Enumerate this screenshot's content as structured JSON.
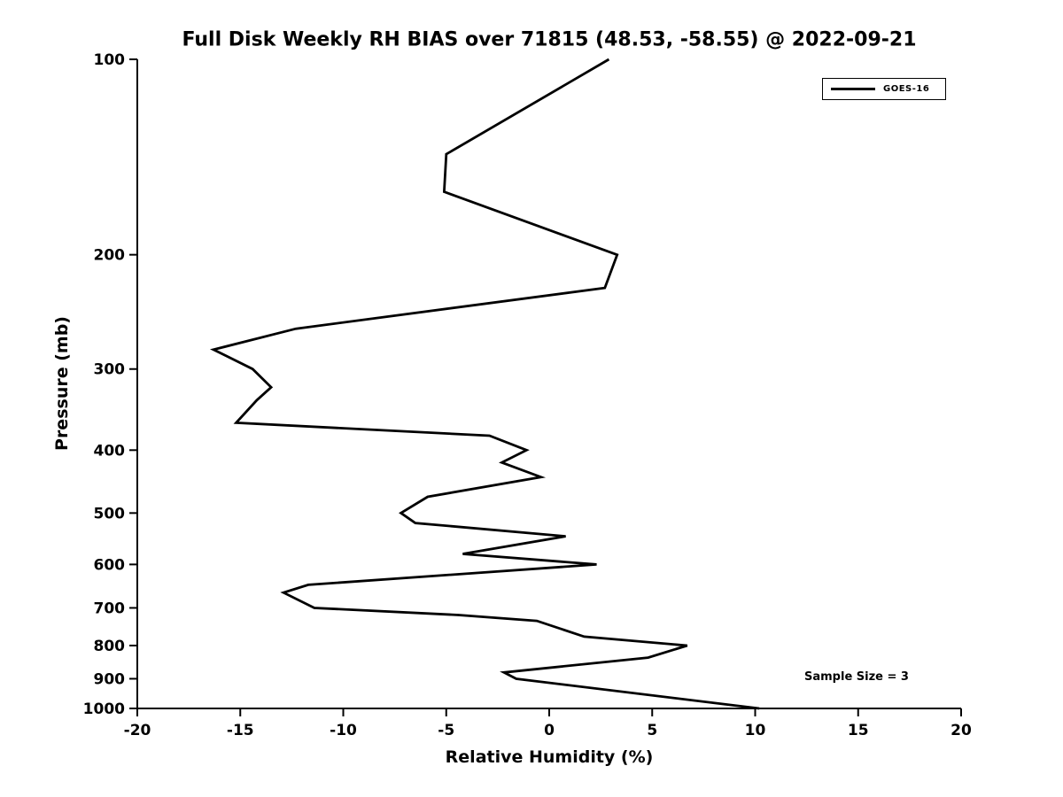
{
  "chart_data": {
    "type": "line",
    "title": "Full Disk Weekly RH BIAS over 71815 (48.53, -58.55) @ 2022-09-21",
    "xlabel": "Relative Humidity (%)",
    "ylabel": "Pressure (mb)",
    "xlim": [
      -20,
      20
    ],
    "xticks": [
      -20,
      -15,
      -10,
      -5,
      0,
      5,
      10,
      15,
      20
    ],
    "ylim": [
      100,
      1000
    ],
    "yticks": [
      100,
      200,
      300,
      400,
      500,
      600,
      700,
      800,
      900,
      1000
    ],
    "y_scale": "log",
    "y_inverted": true,
    "grid": false,
    "legend": {
      "position": "upper right",
      "entries": [
        {
          "label": "GOES-16",
          "color": "#000000",
          "style": "solid"
        }
      ]
    },
    "annotation": "Sample Size = 3",
    "series": [
      {
        "name": "GOES-16",
        "color": "#000000",
        "pressure_mb": [
          100,
          140,
          160,
          200,
          225,
          260,
          280,
          300,
          320,
          335,
          363,
          380,
          400,
          418,
          440,
          472,
          500,
          518,
          543,
          578,
          600,
          645,
          663,
          700,
          718,
          733,
          775,
          800,
          835,
          880,
          900,
          1000
        ],
        "rh_bias_pct": [
          2.9,
          -5.0,
          -5.1,
          3.3,
          2.7,
          -12.3,
          -16.3,
          -14.4,
          -13.5,
          -14.2,
          -15.2,
          -2.9,
          -1.1,
          -2.3,
          -0.4,
          -5.9,
          -7.2,
          -6.5,
          0.8,
          -4.2,
          2.3,
          -11.7,
          -12.9,
          -11.4,
          -4.4,
          -0.6,
          1.7,
          6.7,
          4.8,
          -2.2,
          -1.6,
          10.2
        ]
      }
    ]
  },
  "colors": {
    "line": "#000000",
    "background": "#ffffff",
    "text": "#000000"
  }
}
